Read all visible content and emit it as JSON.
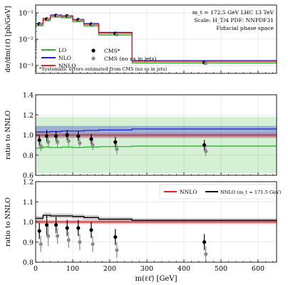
{
  "chart_data": [
    {
      "type": "line",
      "panel": "cross-section",
      "x_edges": [
        0,
        20,
        40,
        70,
        100,
        130,
        170,
        260,
        650
      ],
      "xlim": [
        0,
        650
      ],
      "ylim": [
        0.0005,
        0.2
      ],
      "yscale": "log",
      "y_ticks": [
        "10⁻³",
        "10⁻²",
        "10⁻¹"
      ],
      "ylabel": "dσ/dm(ℓℓ̄) [pb/GeV]",
      "annotation_lines": [
        "m_t = 172.5 GeV LHC 13 TeV",
        "Scale: H_T/4 PDF: NNPDF31",
        "Fiducial phase space"
      ],
      "series": [
        {
          "name": "LO",
          "color": "#2bb52b",
          "values": [
            0.033,
            0.052,
            0.07,
            0.065,
            0.047,
            0.032,
            0.0145,
            0.00125
          ]
        },
        {
          "name": "NLO",
          "color": "#1f1fd0",
          "values": [
            0.039,
            0.061,
            0.083,
            0.077,
            0.056,
            0.039,
            0.018,
            0.00152
          ]
        },
        {
          "name": "NNLO",
          "color": "#e0242a",
          "values": [
            0.038,
            0.059,
            0.08,
            0.074,
            0.054,
            0.037,
            0.0172,
            0.00145
          ]
        }
      ],
      "points": [
        {
          "name": "CMS*",
          "color": "#000000",
          "x": [
            10,
            30,
            55,
            85,
            115,
            150,
            215,
            455
          ],
          "y": [
            0.038,
            0.058,
            0.08,
            0.077,
            0.055,
            0.037,
            0.0165,
            0.00128
          ]
        },
        {
          "name": "CMS (no νs in jets)",
          "color": "#8a8a8a",
          "x": [
            14,
            34,
            59,
            89,
            119,
            154,
            219,
            459
          ],
          "y": [
            0.036,
            0.055,
            0.076,
            0.072,
            0.051,
            0.034,
            0.015,
            0.00122
          ]
        }
      ],
      "footnote": "*Systematic errors estimated from CMS (no νs in jets)"
    },
    {
      "type": "line",
      "panel": "ratio-1",
      "ylabel": "ratio to NNLO",
      "ylim": [
        0.6,
        1.4
      ],
      "y_ticks": [
        0.6,
        0.8,
        1.0,
        1.2,
        1.4
      ],
      "series": [
        {
          "name": "LO",
          "color": "#2bb52b",
          "values": [
            0.87,
            0.88,
            0.875,
            0.88,
            0.875,
            0.88,
            0.885,
            0.89
          ],
          "band_low": [
            0.62,
            0.62,
            0.62,
            0.62,
            0.62,
            0.62,
            0.62,
            0.62
          ],
          "band_high": [
            1.18,
            1.18,
            1.18,
            1.18,
            1.18,
            1.18,
            1.18,
            1.18
          ]
        },
        {
          "name": "NLO",
          "color": "#1f1fd0",
          "values": [
            1.03,
            1.03,
            1.035,
            1.04,
            1.04,
            1.045,
            1.05,
            1.06
          ],
          "band_low": [
            0.98,
            0.98,
            0.98,
            0.98,
            0.98,
            0.98,
            0.98,
            0.98
          ],
          "band_high": [
            1.09,
            1.09,
            1.09,
            1.09,
            1.09,
            1.09,
            1.09,
            1.09
          ]
        },
        {
          "name": "NNLO",
          "color": "#e0242a",
          "values": [
            1.0,
            1.0,
            1.0,
            1.0,
            1.0,
            1.0,
            1.0,
            1.0
          ],
          "band_low": [
            0.97,
            0.97,
            0.97,
            0.97,
            0.97,
            0.97,
            0.97,
            0.97
          ],
          "band_high": [
            1.02,
            1.02,
            1.02,
            1.02,
            1.02,
            1.02,
            1.02,
            1.02
          ]
        }
      ],
      "points": [
        {
          "name": "CMS*",
          "color": "#000000",
          "x": [
            10,
            30,
            55,
            85,
            115,
            150,
            215,
            455
          ],
          "y": [
            0.95,
            0.99,
            0.99,
            1.0,
            0.99,
            0.96,
            0.93,
            0.9
          ],
          "err": [
            0.05,
            0.06,
            0.05,
            0.05,
            0.05,
            0.05,
            0.05,
            0.05
          ]
        },
        {
          "name": "CMS (no νs in jets)",
          "color": "#8a8a8a",
          "x": [
            14,
            34,
            59,
            89,
            119,
            154,
            219,
            459
          ],
          "y": [
            0.89,
            0.93,
            0.93,
            0.94,
            0.92,
            0.9,
            0.86,
            0.84
          ],
          "err": [
            0.05,
            0.06,
            0.05,
            0.05,
            0.05,
            0.05,
            0.05,
            0.05
          ]
        }
      ]
    },
    {
      "type": "line",
      "panel": "ratio-2",
      "ylabel": "ratio to NNLO",
      "xlabel": "m(ℓℓ̄) [GeV]",
      "ylim": [
        0.8,
        1.2
      ],
      "y_ticks": [
        0.8,
        0.9,
        1.0,
        1.1,
        1.2
      ],
      "x_ticks": [
        0,
        100,
        200,
        300,
        400,
        500,
        600
      ],
      "series": [
        {
          "name": "NNLO",
          "color": "#e0242a",
          "values": [
            1.0,
            1.0,
            1.0,
            1.0,
            1.0,
            1.0,
            1.0,
            1.0
          ],
          "band_low": [
            0.99,
            0.99,
            0.99,
            0.99,
            0.99,
            0.99,
            0.99,
            0.99
          ],
          "band_high": [
            1.01,
            1.01,
            1.01,
            1.01,
            1.01,
            1.01,
            1.01,
            1.01
          ]
        },
        {
          "name": "NNLO (m_t = 171.5 GeV)",
          "color": "#000000",
          "values": [
            1.018,
            1.033,
            1.03,
            1.03,
            1.027,
            1.022,
            1.014,
            1.008
          ],
          "band_low": [
            1.005,
            1.02,
            1.018,
            1.018,
            1.015,
            1.01,
            1.003,
            0.998
          ],
          "band_high": [
            1.03,
            1.046,
            1.042,
            1.042,
            1.039,
            1.034,
            1.025,
            1.018
          ]
        }
      ],
      "points": [
        {
          "name": "CMS*",
          "color": "#000000",
          "x": [
            10,
            30,
            55,
            85,
            115,
            150,
            215,
            455
          ],
          "y": [
            0.955,
            0.985,
            0.985,
            0.97,
            0.97,
            0.96,
            0.925,
            0.9
          ],
          "err": [
            0.04,
            0.05,
            0.04,
            0.04,
            0.04,
            0.04,
            0.04,
            0.04
          ]
        },
        {
          "name": "CMS (no νs in jets)",
          "color": "#8a8a8a",
          "x": [
            14,
            34,
            59,
            89,
            119,
            154,
            219,
            459
          ],
          "y": [
            0.89,
            0.93,
            0.93,
            0.91,
            0.9,
            0.89,
            0.86,
            0.84
          ],
          "err": [
            0.04,
            0.05,
            0.04,
            0.04,
            0.04,
            0.04,
            0.04,
            0.04
          ]
        }
      ]
    }
  ]
}
